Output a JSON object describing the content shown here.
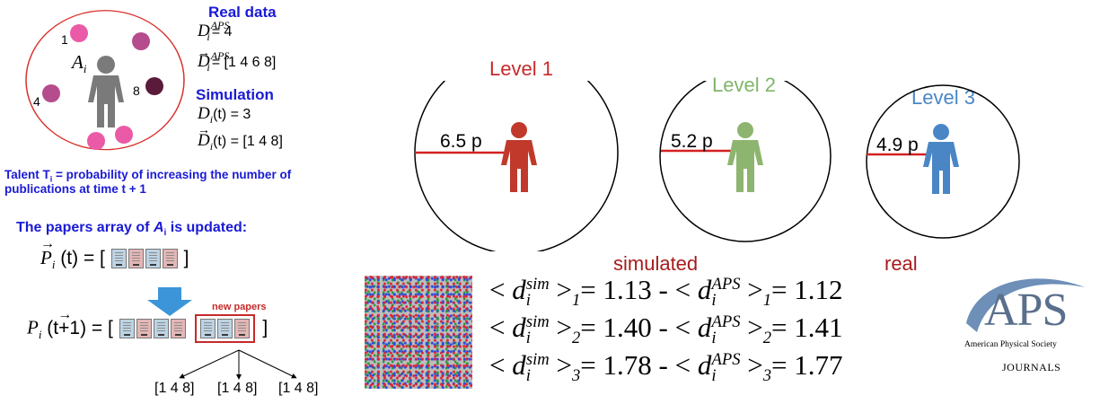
{
  "left_panel": {
    "agent_label": "A",
    "agent_sub": "i",
    "nodes": [
      "1",
      "8",
      "4"
    ],
    "real_data": {
      "heading": "Real data",
      "d_value": "= 4",
      "d_vec_value": "= [1 4 6 8]"
    },
    "simulation": {
      "heading": "Simulation",
      "d_value": "(t) = 3",
      "d_vec_value": "(t) = [1 4 8]"
    },
    "talent_text": "Talent T",
    "talent_sub": "i",
    "talent_rest": " = probability of increasing the number of",
    "talent_line2": "publications at time t + 1",
    "update_text": "The papers array of ",
    "update_A": "A",
    "update_sub": "i",
    "update_rest": " is updated:",
    "p_t_label": "(t) = [",
    "p_t1_label": "(t+1) = [",
    "close_bracket": "]",
    "new_papers_label": "new papers",
    "arrays": [
      "[1 4 8]",
      "[1 4 8]",
      "[1 4 8]"
    ]
  },
  "levels": [
    {
      "title": "Level 1",
      "radius_label": "6.5 p",
      "color": "#c0392b"
    },
    {
      "title": "Level 2",
      "radius_label": "5.2 p",
      "color": "#8db56f"
    },
    {
      "title": "Level 3",
      "radius_label": "4.9 p",
      "color": "#4a86c5"
    }
  ],
  "results": {
    "simulated_label": "simulated",
    "real_label": "real",
    "rows": [
      {
        "level": "1",
        "sim": "1.13",
        "real": "1.12"
      },
      {
        "level": "2",
        "sim": "1.40",
        "real": "1.41"
      },
      {
        "level": "3",
        "sim": "1.78",
        "real": "1.77"
      }
    ]
  },
  "logo": {
    "letters": "APS",
    "society": "American Physical Society",
    "journals": "JOURNALS"
  },
  "colors": {
    "heading_blue": "#1a1ad6",
    "accent_red": "#a61c1c",
    "node_pink": "#ea5aa6",
    "node_magenta": "#b54c8c",
    "node_dark": "#5a1a3a"
  }
}
